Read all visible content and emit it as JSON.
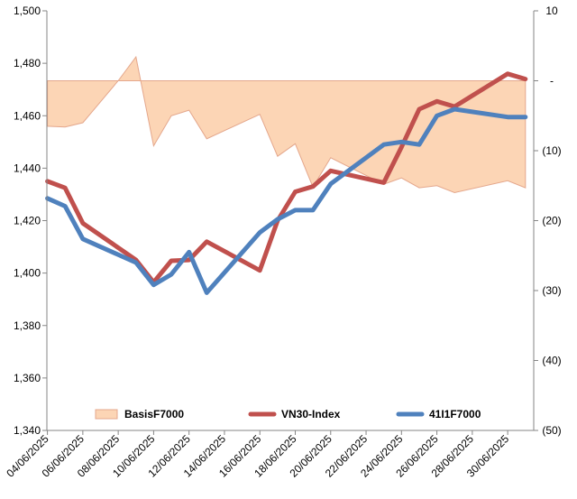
{
  "chart_data": {
    "type": "line",
    "x": [
      "04/06/2025",
      "05/06/2025",
      "06/06/2025",
      "09/06/2025",
      "10/06/2025",
      "11/06/2025",
      "12/06/2025",
      "13/06/2025",
      "16/06/2025",
      "17/06/2025",
      "18/06/2025",
      "19/06/2025",
      "20/06/2025",
      "23/06/2025",
      "24/06/2025",
      "25/06/2025",
      "26/06/2025",
      "27/06/2025",
      "30/06/2025",
      "01/07/2025"
    ],
    "x_ticks": [
      "04/06/2025",
      "06/06/2025",
      "08/06/2025",
      "10/06/2025",
      "12/06/2025",
      "14/06/2025",
      "16/06/2025",
      "18/06/2025",
      "20/06/2025",
      "22/06/2025",
      "24/06/2025",
      "26/06/2025",
      "28/06/2025",
      "30/06/2025"
    ],
    "x_index_map": [
      0,
      1,
      2,
      3,
      4,
      5,
      6,
      7,
      8,
      9,
      10,
      11,
      12,
      13,
      14,
      15,
      16,
      17,
      18,
      19
    ],
    "left_axis": {
      "ylim": [
        1340,
        1500
      ],
      "ticks": [
        "1,340",
        "1,360",
        "1,380",
        "1,400",
        "1,420",
        "1,440",
        "1,460",
        "1,480",
        "1,500"
      ]
    },
    "right_axis": {
      "ylim": [
        -50,
        10
      ],
      "ticks": [
        "10",
        "-",
        "(10)",
        "(20)",
        "(30)",
        "(40)",
        "(50)"
      ]
    },
    "series": [
      {
        "name": "BasisF7000",
        "kind": "area",
        "axis": "right",
        "color": "#fcd5b5",
        "edge": "#e4a78c",
        "points": [
          [
            "04/06/2025",
            -6.5
          ],
          [
            "04/06/2025",
            -6.5
          ],
          [
            "05/06/2025",
            -6.6
          ],
          [
            "06/06/2025",
            -6.0
          ],
          [
            "07/06/2025",
            -3.0
          ],
          [
            "08/06/2025",
            0.0
          ],
          [
            "09/06/2025",
            3.4
          ],
          [
            "10/06/2025",
            -9.3
          ],
          [
            "11/06/2025",
            -5.0
          ],
          [
            "12/06/2025",
            -4.2
          ],
          [
            "13/06/2025",
            -8.3
          ],
          [
            "16/06/2025",
            -4.8
          ],
          [
            "17/06/2025",
            -10.8
          ],
          [
            "18/06/2025",
            -9.0
          ],
          [
            "19/06/2025",
            -15.2
          ],
          [
            "20/06/2025",
            -11.0
          ],
          [
            "23/06/2025",
            -14.8
          ],
          [
            "24/06/2025",
            -13.9
          ],
          [
            "25/06/2025",
            -15.3
          ],
          [
            "26/06/2025",
            -15.0
          ],
          [
            "27/06/2025",
            -16.0
          ],
          [
            "30/06/2025",
            -14.3
          ],
          [
            "01/07/2025",
            -15.3
          ]
        ]
      },
      {
        "name": "VN30-Index",
        "kind": "line",
        "axis": "left",
        "color": "#c0504d",
        "values": [
          1435,
          1432.5,
          1419,
          1405,
          1396.5,
          1404.7,
          1405,
          1412,
          1401,
          1420,
          1431,
          1433,
          1439,
          1434.5,
          1448,
          1462.5,
          1465.5,
          1463.5,
          1476,
          1474
        ]
      },
      {
        "name": "41I1F7000",
        "kind": "line",
        "axis": "left",
        "color": "#4f81bd",
        "values": [
          1428.5,
          1425.5,
          1413,
          1404,
          1395.5,
          1399.5,
          1408,
          1392.5,
          1415.5,
          1420.5,
          1424,
          1424,
          1434,
          1449,
          1450,
          1449,
          1460,
          1462.5,
          1459.5,
          1459.5
        ]
      }
    ],
    "legend": {
      "placement": "bottom-inside"
    },
    "grid": false
  }
}
